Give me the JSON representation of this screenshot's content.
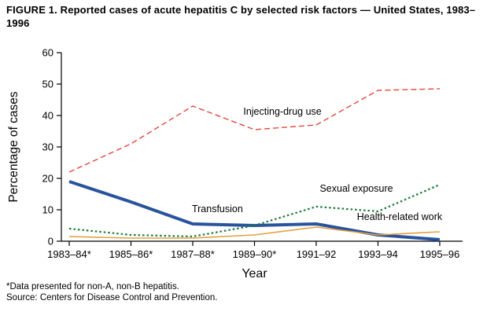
{
  "figure": {
    "title": "FIGURE 1. Reported cases of acute hepatitis C by selected risk factors — United States, 1983–1996"
  },
  "chart_data": {
    "type": "line",
    "title": "Reported cases of acute hepatitis C by selected risk factors — United States, 1983–1996",
    "xlabel": "Year",
    "ylabel": "Percentage of cases",
    "ylim": [
      0,
      60
    ],
    "yticks": [
      0,
      10,
      20,
      30,
      40,
      50,
      60
    ],
    "grid": false,
    "legend": "inline-labels",
    "categories": [
      "1983–84*",
      "1985–86*",
      "1987–88*",
      "1989–90*",
      "1991–92",
      "1993–94",
      "1995–96"
    ],
    "series": [
      {
        "name": "Injecting-drug use",
        "values": [
          22,
          31,
          43,
          35.5,
          37,
          48,
          48.5
        ],
        "color": "#e2483d",
        "style": "dashed",
        "width": 1.4,
        "label_x": 2.82,
        "label_y": 40.3,
        "anchor": "start"
      },
      {
        "name": "Transfusion",
        "values": [
          19,
          12.5,
          5.5,
          5,
          5.5,
          2,
          0.5
        ],
        "color": "#29549c",
        "style": "solid",
        "width": 4,
        "label_x": 2.4,
        "label_y": 9.3,
        "anchor": "middle"
      },
      {
        "name": "Sexual exposure",
        "values": [
          4,
          2,
          1.5,
          5,
          11,
          9.5,
          18
        ],
        "color": "#1d7b3c",
        "style": "dotted",
        "width": 2.2,
        "label_x": 4.65,
        "label_y": 15.8,
        "anchor": "middle"
      },
      {
        "name": "Health-related work",
        "values": [
          1.5,
          1,
          1,
          2,
          4.5,
          2,
          3
        ],
        "color": "#e3a13e",
        "style": "solid",
        "width": 1.6,
        "label_x": 5.35,
        "label_y": 6.8,
        "anchor": "middle"
      }
    ]
  },
  "footnotes": [
    "*Data presented for non-A, non-B hepatitis.",
    "Source: Centers for Disease Control and Prevention."
  ]
}
